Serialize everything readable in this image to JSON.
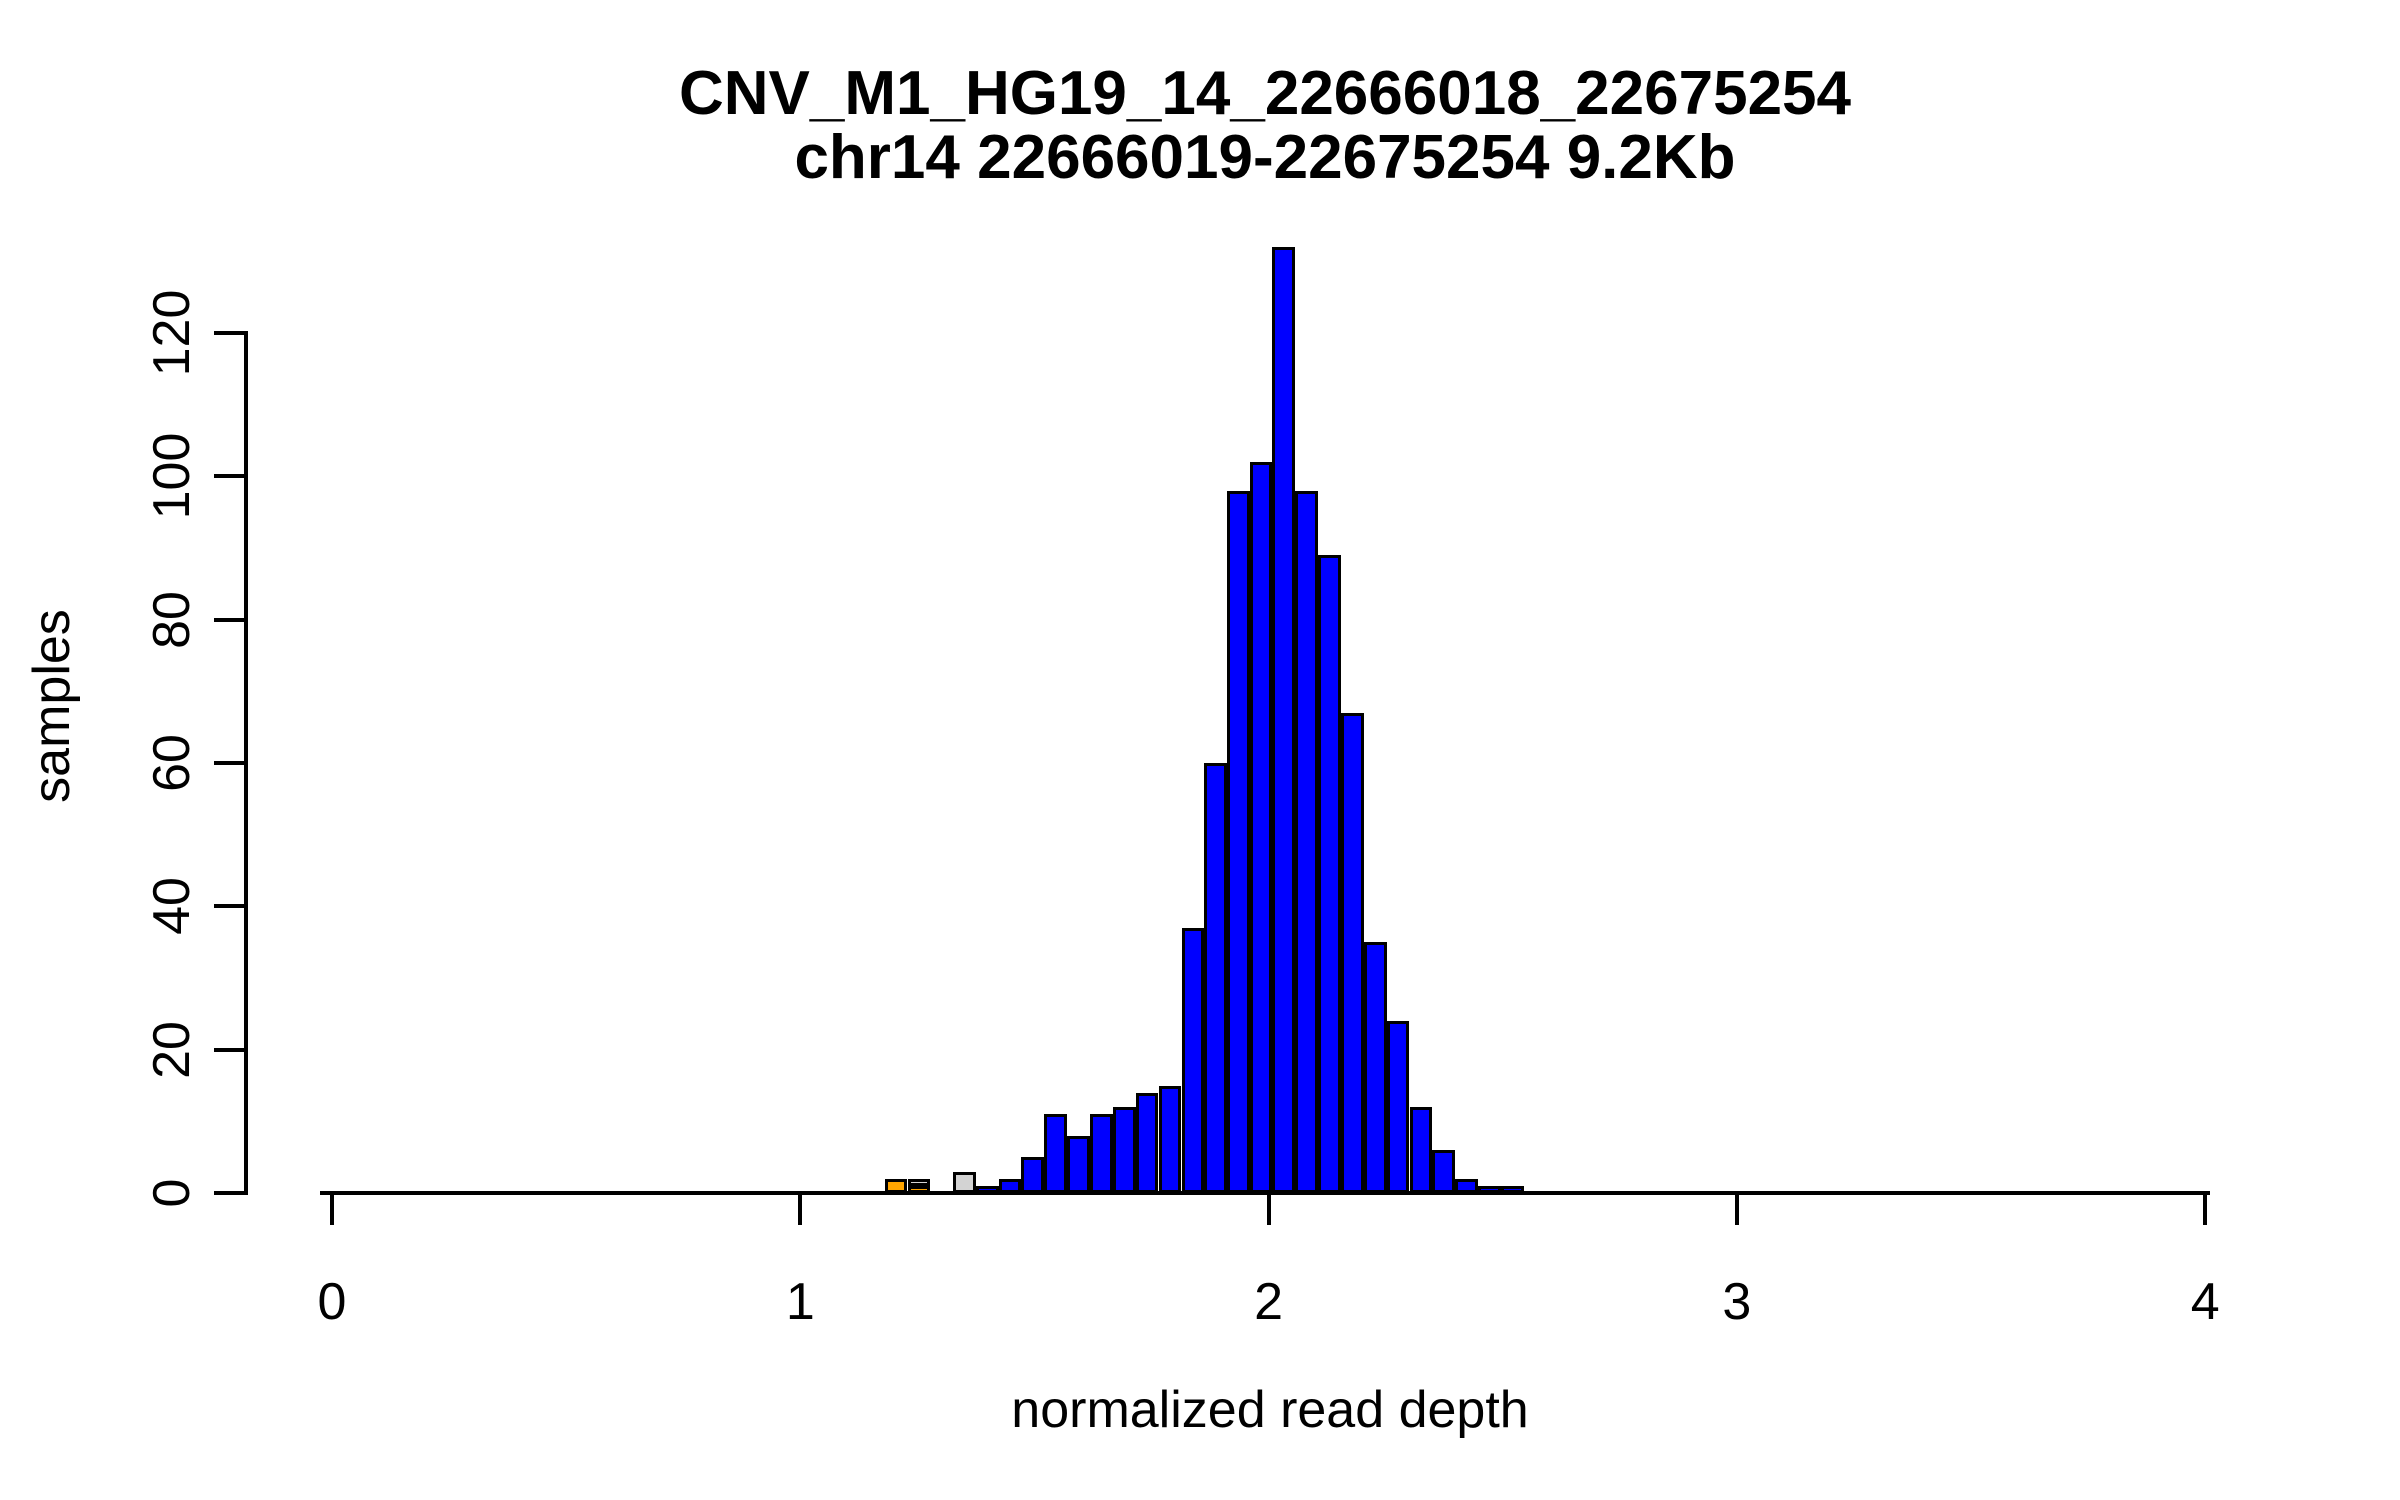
{
  "figure": {
    "title": "CNV_M1_HG19_14_22666018_22675254",
    "subtitle": "chr14 22666019-22675254 9.2Kb"
  },
  "chart_data": {
    "type": "bar",
    "subtype": "histogram",
    "title": "CNV_M1_HG19_14_22666018_22675254",
    "subtitle": "chr14 22666019-22675254 9.2Kb",
    "xlabel": "normalized read depth",
    "ylabel": "samples",
    "xlim": [
      0,
      4
    ],
    "ylim": [
      0,
      132
    ],
    "x_ticks": [
      0,
      1,
      2,
      3,
      4
    ],
    "y_ticks": [
      0,
      20,
      40,
      60,
      80,
      100,
      120
    ],
    "grid": false,
    "legend": "none",
    "bin_width": 0.049,
    "colors": {
      "blue": "#0000ff",
      "orange": "#ffa500",
      "gray": "#d3d3d3",
      "border": "#000000",
      "background": "#ffffff"
    },
    "bins": [
      {
        "x0": 1.18,
        "x1": 1.229,
        "total": 2,
        "stack": [
          {
            "color_key": "orange",
            "count": 2
          }
        ]
      },
      {
        "x0": 1.229,
        "x1": 1.278,
        "total": 2,
        "stack": [
          {
            "color_key": "orange",
            "count": 1
          },
          {
            "color_key": "gray",
            "count": 1
          }
        ]
      },
      {
        "x0": 1.278,
        "x1": 1.326,
        "total": 0,
        "stack": []
      },
      {
        "x0": 1.326,
        "x1": 1.375,
        "total": 3,
        "stack": [
          {
            "color_key": "gray",
            "count": 3
          }
        ]
      },
      {
        "x0": 1.375,
        "x1": 1.424,
        "total": 1,
        "stack": [
          {
            "color_key": "blue",
            "count": 1
          }
        ]
      },
      {
        "x0": 1.424,
        "x1": 1.472,
        "total": 2,
        "stack": [
          {
            "color_key": "blue",
            "count": 2
          }
        ]
      },
      {
        "x0": 1.472,
        "x1": 1.521,
        "total": 5,
        "stack": [
          {
            "color_key": "blue",
            "count": 5
          }
        ]
      },
      {
        "x0": 1.521,
        "x1": 1.57,
        "total": 11,
        "stack": [
          {
            "color_key": "blue",
            "count": 11
          }
        ]
      },
      {
        "x0": 1.57,
        "x1": 1.619,
        "total": 8,
        "stack": [
          {
            "color_key": "blue",
            "count": 8
          }
        ]
      },
      {
        "x0": 1.619,
        "x1": 1.667,
        "total": 11,
        "stack": [
          {
            "color_key": "blue",
            "count": 11
          }
        ]
      },
      {
        "x0": 1.667,
        "x1": 1.716,
        "total": 12,
        "stack": [
          {
            "color_key": "blue",
            "count": 12
          }
        ]
      },
      {
        "x0": 1.716,
        "x1": 1.765,
        "total": 14,
        "stack": [
          {
            "color_key": "blue",
            "count": 14
          }
        ]
      },
      {
        "x0": 1.765,
        "x1": 1.814,
        "total": 15,
        "stack": [
          {
            "color_key": "blue",
            "count": 15
          }
        ]
      },
      {
        "x0": 1.814,
        "x1": 1.862,
        "total": 37,
        "stack": [
          {
            "color_key": "blue",
            "count": 37
          }
        ]
      },
      {
        "x0": 1.862,
        "x1": 1.911,
        "total": 60,
        "stack": [
          {
            "color_key": "blue",
            "count": 60
          }
        ]
      },
      {
        "x0": 1.911,
        "x1": 1.96,
        "total": 98,
        "stack": [
          {
            "color_key": "blue",
            "count": 98
          }
        ]
      },
      {
        "x0": 1.96,
        "x1": 2.008,
        "total": 102,
        "stack": [
          {
            "color_key": "blue",
            "count": 102
          }
        ]
      },
      {
        "x0": 2.008,
        "x1": 2.057,
        "total": 132,
        "stack": [
          {
            "color_key": "blue",
            "count": 132
          }
        ]
      },
      {
        "x0": 2.057,
        "x1": 2.106,
        "total": 98,
        "stack": [
          {
            "color_key": "blue",
            "count": 98
          }
        ]
      },
      {
        "x0": 2.106,
        "x1": 2.154,
        "total": 89,
        "stack": [
          {
            "color_key": "blue",
            "count": 89
          }
        ]
      },
      {
        "x0": 2.154,
        "x1": 2.203,
        "total": 67,
        "stack": [
          {
            "color_key": "blue",
            "count": 67
          }
        ]
      },
      {
        "x0": 2.203,
        "x1": 2.252,
        "total": 35,
        "stack": [
          {
            "color_key": "blue",
            "count": 35
          }
        ]
      },
      {
        "x0": 2.252,
        "x1": 2.301,
        "total": 24,
        "stack": [
          {
            "color_key": "blue",
            "count": 24
          }
        ]
      },
      {
        "x0": 2.301,
        "x1": 2.349,
        "total": 12,
        "stack": [
          {
            "color_key": "blue",
            "count": 12
          }
        ]
      },
      {
        "x0": 2.349,
        "x1": 2.398,
        "total": 6,
        "stack": [
          {
            "color_key": "blue",
            "count": 6
          }
        ]
      },
      {
        "x0": 2.398,
        "x1": 2.447,
        "total": 2,
        "stack": [
          {
            "color_key": "blue",
            "count": 2
          }
        ]
      },
      {
        "x0": 2.447,
        "x1": 2.496,
        "total": 1,
        "stack": [
          {
            "color_key": "blue",
            "count": 1
          }
        ]
      },
      {
        "x0": 2.496,
        "x1": 2.545,
        "total": 1,
        "stack": [
          {
            "color_key": "blue",
            "count": 1
          }
        ]
      }
    ]
  }
}
